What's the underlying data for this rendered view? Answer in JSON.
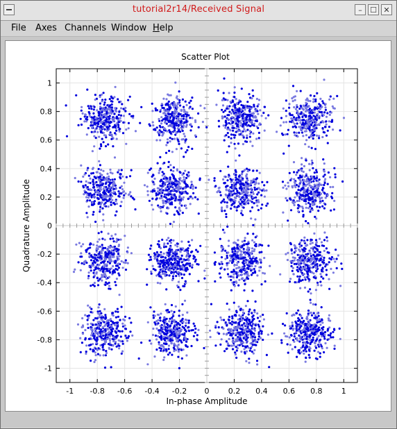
{
  "window": {
    "title": "tutorial2r14/Received Signal",
    "buttons": {
      "minimize": "–",
      "maximize": "☐",
      "close": "✕"
    }
  },
  "menubar": {
    "items": [
      {
        "label": "File"
      },
      {
        "label": "Axes"
      },
      {
        "label": "Channels"
      },
      {
        "label": "Window"
      },
      {
        "label": "Help",
        "mnemonic": "H"
      }
    ]
  },
  "colors": {
    "point_dark": "#0000dd",
    "point_light": "#7a7ae0",
    "title_text": "#d11a1a"
  },
  "chart_data": {
    "type": "scatter",
    "title": "Scatter Plot",
    "xlabel": "In-phase Amplitude",
    "ylabel": "Quadrature Amplitude",
    "xlim": [
      -1.1,
      1.1
    ],
    "ylim": [
      -1.1,
      1.1
    ],
    "x_ticks": [
      -1,
      -0.8,
      -0.6,
      -0.4,
      -0.2,
      0,
      0.2,
      0.4,
      0.6,
      0.8,
      1
    ],
    "y_ticks": [
      -1,
      -0.8,
      -0.6,
      -0.4,
      -0.2,
      0,
      0.2,
      0.4,
      0.6,
      0.8,
      1
    ],
    "grid": true,
    "series": [
      {
        "marker": "dot",
        "cluster_centers": [
          [
            -0.75,
            0.75
          ],
          [
            -0.25,
            0.75
          ],
          [
            0.25,
            0.75
          ],
          [
            0.75,
            0.75
          ],
          [
            -0.75,
            0.25
          ],
          [
            -0.25,
            0.25
          ],
          [
            0.25,
            0.25
          ],
          [
            0.75,
            0.25
          ],
          [
            -0.75,
            -0.25
          ],
          [
            -0.25,
            -0.25
          ],
          [
            0.25,
            -0.25
          ],
          [
            0.75,
            -0.25
          ],
          [
            -0.75,
            -0.75
          ],
          [
            -0.25,
            -0.75
          ],
          [
            0.25,
            -0.75
          ],
          [
            0.75,
            -0.75
          ]
        ],
        "cluster_spread": 0.08
      }
    ]
  }
}
